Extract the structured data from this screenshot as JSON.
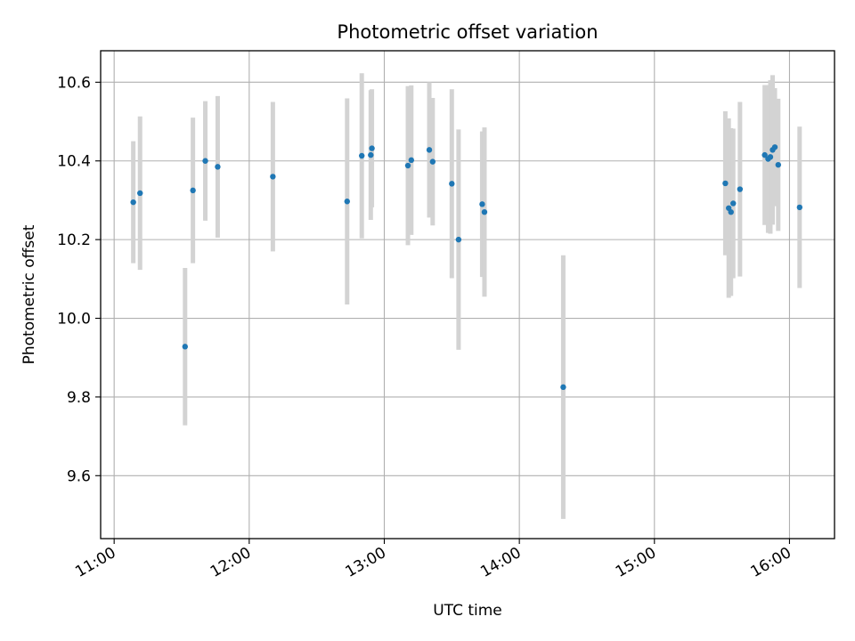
{
  "chart_data": {
    "type": "scatter",
    "title": "Photometric offset variation",
    "xlabel": "UTC time",
    "ylabel": "Photometric offset",
    "x_ticks": [
      "11:00",
      "12:00",
      "13:00",
      "14:00",
      "15:00",
      "16:00"
    ],
    "x_tick_values": [
      "11:00",
      "12:00",
      "13:00",
      "14:00",
      "15:00",
      "16:00"
    ],
    "xlim": [
      "10:54",
      "16:20"
    ],
    "y_ticks": [
      "9.6",
      "9.8",
      "10.0",
      "10.2",
      "10.4",
      "10.6"
    ],
    "y_tick_values": [
      9.6,
      9.8,
      10.0,
      10.2,
      10.4,
      10.6
    ],
    "ylim": [
      9.44,
      10.68
    ],
    "grid": true,
    "marker_color": "#1f77b4",
    "errorbar_color": "#d3d3d3",
    "series": [
      {
        "points": [
          {
            "x": "11:08:30",
            "y": 10.295,
            "err": 0.155
          },
          {
            "x": "11:11:30",
            "y": 10.318,
            "err": 0.195
          },
          {
            "x": "11:31:30",
            "y": 9.928,
            "err": 0.2
          },
          {
            "x": "11:35:00",
            "y": 10.325,
            "err": 0.185
          },
          {
            "x": "11:40:30",
            "y": 10.4,
            "err": 0.152
          },
          {
            "x": "11:46:00",
            "y": 10.385,
            "err": 0.18
          },
          {
            "x": "12:10:30",
            "y": 10.36,
            "err": 0.19
          },
          {
            "x": "12:43:30",
            "y": 10.297,
            "err": 0.262
          },
          {
            "x": "12:50:00",
            "y": 10.413,
            "err": 0.21
          },
          {
            "x": "12:54:00",
            "y": 10.415,
            "err": 0.165
          },
          {
            "x": "12:54:30",
            "y": 10.432,
            "err": 0.15
          },
          {
            "x": "13:10:30",
            "y": 10.388,
            "err": 0.202
          },
          {
            "x": "13:12:00",
            "y": 10.402,
            "err": 0.19
          },
          {
            "x": "13:20:00",
            "y": 10.428,
            "err": 0.172
          },
          {
            "x": "13:21:30",
            "y": 10.398,
            "err": 0.162
          },
          {
            "x": "13:30:00",
            "y": 10.342,
            "err": 0.24
          },
          {
            "x": "13:33:00",
            "y": 10.2,
            "err": 0.28
          },
          {
            "x": "13:43:30",
            "y": 10.29,
            "err": 0.185
          },
          {
            "x": "13:44:30",
            "y": 10.27,
            "err": 0.215
          },
          {
            "x": "14:19:30",
            "y": 9.825,
            "err": 0.335
          },
          {
            "x": "15:31:30",
            "y": 10.343,
            "err": 0.183
          },
          {
            "x": "15:33:00",
            "y": 10.28,
            "err": 0.228
          },
          {
            "x": "15:34:00",
            "y": 10.27,
            "err": 0.213
          },
          {
            "x": "15:35:00",
            "y": 10.292,
            "err": 0.19
          },
          {
            "x": "15:38:00",
            "y": 10.328,
            "err": 0.222
          },
          {
            "x": "15:49:00",
            "y": 10.415,
            "err": 0.178
          },
          {
            "x": "15:50:30",
            "y": 10.405,
            "err": 0.188
          },
          {
            "x": "15:51:30",
            "y": 10.41,
            "err": 0.195
          },
          {
            "x": "15:52:30",
            "y": 10.428,
            "err": 0.19
          },
          {
            "x": "15:53:30",
            "y": 10.435,
            "err": 0.15
          },
          {
            "x": "15:55:00",
            "y": 10.39,
            "err": 0.168
          },
          {
            "x": "16:04:30",
            "y": 10.282,
            "err": 0.205
          }
        ]
      }
    ]
  }
}
